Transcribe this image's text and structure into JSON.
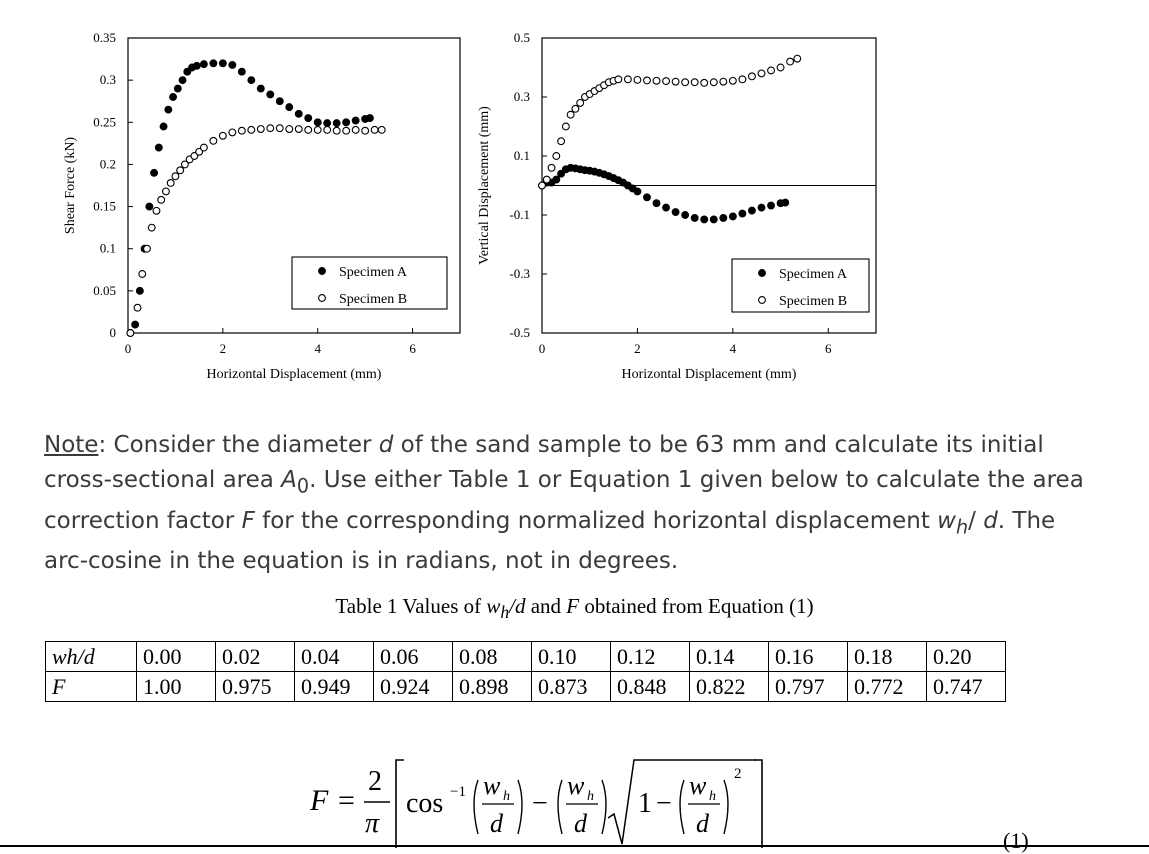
{
  "chart_data": [
    {
      "type": "scatter",
      "title": "",
      "xlabel": "Horizontal Displacement (mm)",
      "ylabel": "Shear Force (kN)",
      "xlim": [
        0,
        7
      ],
      "ylim": [
        0,
        0.35
      ],
      "xticks": [
        "0",
        "2",
        "4",
        "6"
      ],
      "yticks": [
        "0",
        "0.05",
        "0.1",
        "0.15",
        "0.2",
        "0.25",
        "0.3",
        "0.35"
      ],
      "legend_position": "bottom-right",
      "series": [
        {
          "name": "Specimen A",
          "marker": "filled-circle",
          "x": [
            0.05,
            0.15,
            0.25,
            0.35,
            0.45,
            0.55,
            0.65,
            0.75,
            0.85,
            0.95,
            1.05,
            1.15,
            1.25,
            1.35,
            1.45,
            1.6,
            1.8,
            2.0,
            2.2,
            2.4,
            2.6,
            2.8,
            3.0,
            3.2,
            3.4,
            3.6,
            3.8,
            4.0,
            4.2,
            4.4,
            4.6,
            4.8,
            5.0,
            5.1
          ],
          "y": [
            0.0,
            0.01,
            0.05,
            0.1,
            0.15,
            0.19,
            0.22,
            0.245,
            0.265,
            0.28,
            0.29,
            0.3,
            0.31,
            0.315,
            0.317,
            0.319,
            0.32,
            0.32,
            0.318,
            0.31,
            0.3,
            0.29,
            0.283,
            0.275,
            0.268,
            0.26,
            0.255,
            0.25,
            0.249,
            0.249,
            0.25,
            0.252,
            0.254,
            0.255
          ]
        },
        {
          "name": "Specimen B",
          "marker": "open-circle",
          "x": [
            0.05,
            0.2,
            0.3,
            0.4,
            0.5,
            0.6,
            0.7,
            0.8,
            0.9,
            1.0,
            1.1,
            1.2,
            1.3,
            1.4,
            1.5,
            1.6,
            1.8,
            2.0,
            2.2,
            2.4,
            2.6,
            2.8,
            3.0,
            3.2,
            3.4,
            3.6,
            3.8,
            4.0,
            4.2,
            4.4,
            4.6,
            4.8,
            5.0,
            5.2,
            5.35
          ],
          "y": [
            0.0,
            0.03,
            0.07,
            0.1,
            0.125,
            0.145,
            0.158,
            0.168,
            0.178,
            0.186,
            0.193,
            0.2,
            0.206,
            0.21,
            0.215,
            0.22,
            0.228,
            0.234,
            0.238,
            0.24,
            0.241,
            0.242,
            0.243,
            0.243,
            0.242,
            0.242,
            0.241,
            0.241,
            0.241,
            0.24,
            0.24,
            0.241,
            0.24,
            0.241,
            0.241
          ]
        }
      ]
    },
    {
      "type": "scatter",
      "title": "",
      "xlabel": "Horizontal Displacement (mm)",
      "ylabel": "Vertical Displacement (mm)",
      "xlim": [
        0,
        7
      ],
      "ylim": [
        -0.5,
        0.5
      ],
      "xticks": [
        "0",
        "2",
        "4",
        "6"
      ],
      "yticks": [
        "-0.5",
        "-0.3",
        "-0.1",
        "0.1",
        "0.3",
        "0.5"
      ],
      "reference_line_y": 0,
      "legend_position": "bottom-right",
      "series": [
        {
          "name": "Specimen A",
          "marker": "filled-circle",
          "x": [
            0.0,
            0.1,
            0.2,
            0.3,
            0.4,
            0.5,
            0.6,
            0.7,
            0.8,
            0.9,
            1.0,
            1.1,
            1.2,
            1.3,
            1.4,
            1.5,
            1.6,
            1.7,
            1.8,
            1.9,
            2.0,
            2.2,
            2.4,
            2.6,
            2.8,
            3.0,
            3.2,
            3.4,
            3.6,
            3.8,
            4.0,
            4.2,
            4.4,
            4.6,
            4.8,
            5.0,
            5.1
          ],
          "y": [
            0.0,
            0.01,
            0.01,
            0.02,
            0.04,
            0.055,
            0.06,
            0.058,
            0.055,
            0.052,
            0.05,
            0.047,
            0.043,
            0.038,
            0.032,
            0.025,
            0.018,
            0.01,
            0.0,
            -0.01,
            -0.02,
            -0.04,
            -0.06,
            -0.075,
            -0.09,
            -0.1,
            -0.11,
            -0.115,
            -0.115,
            -0.11,
            -0.105,
            -0.095,
            -0.085,
            -0.075,
            -0.068,
            -0.06,
            -0.058
          ]
        },
        {
          "name": "Specimen B",
          "marker": "open-circle",
          "x": [
            0.0,
            0.1,
            0.2,
            0.3,
            0.4,
            0.5,
            0.6,
            0.7,
            0.8,
            0.9,
            1.0,
            1.1,
            1.2,
            1.3,
            1.4,
            1.5,
            1.6,
            1.8,
            2.0,
            2.2,
            2.4,
            2.6,
            2.8,
            3.0,
            3.2,
            3.4,
            3.6,
            3.8,
            4.0,
            4.2,
            4.4,
            4.6,
            4.8,
            5.0,
            5.2,
            5.35
          ],
          "y": [
            0.0,
            0.02,
            0.06,
            0.1,
            0.15,
            0.2,
            0.24,
            0.26,
            0.28,
            0.3,
            0.31,
            0.32,
            0.33,
            0.34,
            0.35,
            0.355,
            0.36,
            0.36,
            0.358,
            0.356,
            0.355,
            0.354,
            0.352,
            0.35,
            0.35,
            0.348,
            0.35,
            0.352,
            0.355,
            0.36,
            0.37,
            0.38,
            0.39,
            0.4,
            0.42,
            0.43
          ]
        }
      ]
    }
  ],
  "note": {
    "label": "Note",
    "t1": ": Consider the diameter ",
    "d1": "d",
    "t2": " of the sand sample to be 63 mm and calculate its initial cross-sectional area ",
    "a0": "A",
    "a0sub": "0",
    "t3": ". Use either Table 1 or Equation 1 given below to calculate the area correction factor ",
    "f": "F",
    "t4": " for the corresponding normalized horizontal displacement ",
    "wh": "w",
    "whsub": "h",
    "t5": "/ ",
    "d2": "d",
    "t6": ". The arc-cosine in the equation is in radians, not in degrees."
  },
  "table": {
    "caption_pre": "Table 1 Values of ",
    "caption_var1": "w",
    "caption_var1sub": "h",
    "caption_var1rest": "/d",
    "caption_mid": " and ",
    "caption_var2": "F",
    "caption_post": " obtained from Equation (1)",
    "row1_head": "wh/d",
    "row2_head": "F",
    "row1": [
      "0.00",
      "0.02",
      "0.04",
      "0.06",
      "0.08",
      "0.10",
      "0.12",
      "0.14",
      "0.16",
      "0.18",
      "0.20"
    ],
    "row2": [
      "1.00",
      "0.975",
      "0.949",
      "0.924",
      "0.898",
      "0.873",
      "0.848",
      "0.822",
      "0.797",
      "0.772",
      "0.747"
    ]
  },
  "equation": {
    "lhs": "F",
    "equals": "=",
    "num": "2",
    "den": "π",
    "cos": "cos",
    "inv": "−1",
    "w": "w",
    "h": "h",
    "d": "d",
    "minus": "−",
    "one": "1",
    "sq": "2",
    "number": "(1)"
  }
}
